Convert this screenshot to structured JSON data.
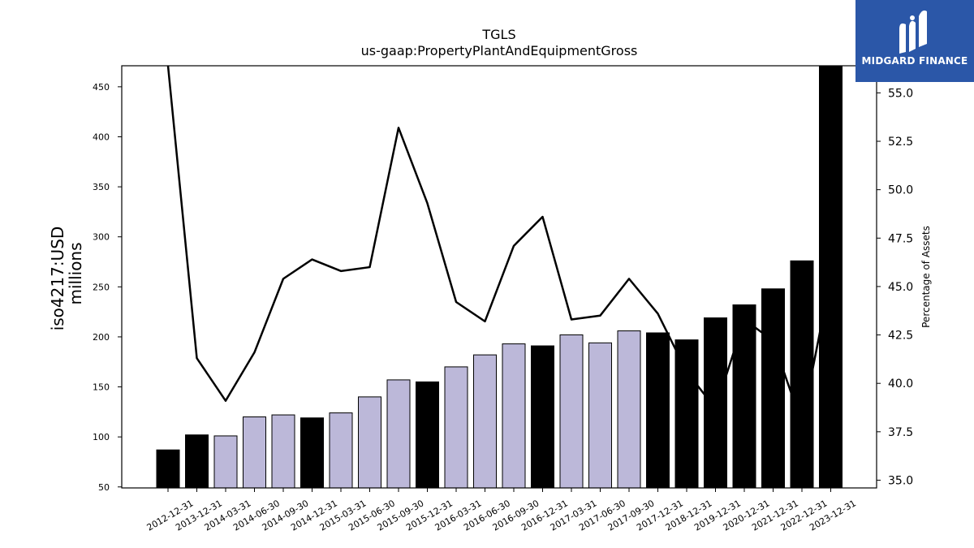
{
  "brand": {
    "name": "MIDGARD FINANCE",
    "bg_color": "#2b57a8",
    "icon": "midgard-logo-icon"
  },
  "chart_data": {
    "type": "bar",
    "title": "TGLS",
    "subtitle": "us-gaap:PropertyPlantAndEquipmentGross",
    "ylabel": "iso4217:USD",
    "ylabel_sub": "millions",
    "y2label": "Percentage of Assets",
    "ylim": [
      49,
      471
    ],
    "y2lim": [
      34.6,
      56.4
    ],
    "yticks": [
      50,
      100,
      150,
      200,
      250,
      300,
      350,
      400,
      450
    ],
    "y2ticks": [
      "35.0",
      "37.5",
      "40.0",
      "42.5",
      "45.0",
      "47.5",
      "50.0",
      "52.5",
      "55.0"
    ],
    "categories": [
      "2012-12-31",
      "2013-12-31",
      "2014-03-31",
      "2014-06-30",
      "2014-09-30",
      "2014-12-31",
      "2015-03-31",
      "2015-06-30",
      "2015-09-30",
      "2015-12-31",
      "2016-03-31",
      "2016-06-30",
      "2016-09-30",
      "2016-12-31",
      "2017-03-31",
      "2017-06-30",
      "2017-09-30",
      "2017-12-31",
      "2018-12-31",
      "2019-12-31",
      "2020-12-31",
      "2021-12-31",
      "2022-12-31",
      "2023-12-31"
    ],
    "series": [
      {
        "kind": "bar",
        "values": [
          87,
          102,
          101,
          120,
          122,
          119,
          124,
          140,
          157,
          155,
          170,
          182,
          193,
          191,
          202,
          194,
          206,
          204,
          197,
          219,
          232,
          248,
          276,
          471
        ],
        "period": [
          "annual",
          "annual",
          "quarterly",
          "quarterly",
          "quarterly",
          "annual",
          "quarterly",
          "quarterly",
          "quarterly",
          "annual",
          "quarterly",
          "quarterly",
          "quarterly",
          "annual",
          "quarterly",
          "quarterly",
          "quarterly",
          "annual",
          "annual",
          "annual",
          "annual",
          "annual",
          "annual",
          "annual"
        ]
      },
      {
        "kind": "line",
        "axis": "right",
        "values": [
          56.4,
          41.3,
          39.1,
          41.6,
          45.4,
          46.4,
          45.8,
          46.0,
          53.2,
          49.3,
          44.2,
          43.2,
          47.1,
          48.6,
          43.3,
          43.5,
          45.4,
          43.6,
          40.6,
          38.7,
          43.3,
          42.2,
          37.9,
          45.5
        ]
      }
    ],
    "colors": {
      "annual": "#000000",
      "quarterly": "#bcb8d9",
      "line": "#000000"
    },
    "grid": false,
    "legend": "none"
  }
}
